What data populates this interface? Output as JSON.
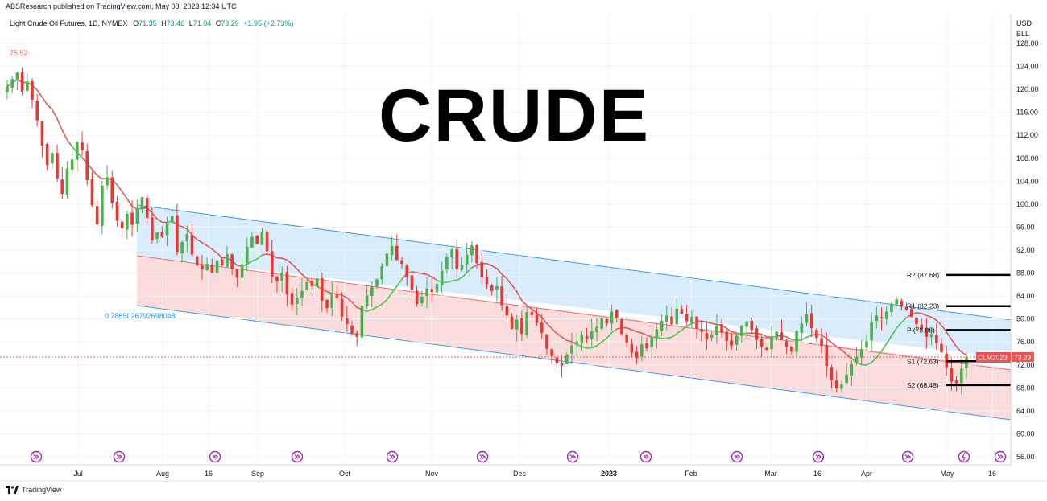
{
  "publisher_line": "ABSResearch published on TradingView.com, May 08, 2023 12:34 UTC",
  "symbol_line": {
    "name": "Light Crude Oil Futures, 1D, NYMEX",
    "o_label": "O",
    "o": "71.35",
    "h_label": "H",
    "h": "73.46",
    "l_label": "L",
    "l": "71.04",
    "c_label": "C",
    "c": "73.29",
    "change": "+1.95 (+2.73%)"
  },
  "currency": "USD",
  "unit": "BLL",
  "watermark": "CRUDE",
  "high_marker": "75.52",
  "fib_label": "0.7865026792698048",
  "price_tag": {
    "symbol": "CLM2023",
    "value": "73.29"
  },
  "branding": "TradingView",
  "colors": {
    "up": "#26a69a",
    "down": "#ef5350",
    "down_candle": "#e53935",
    "up_candle": "#4caf50",
    "channel_upper_fill": "#d8ecfc",
    "channel_lower_fill": "#fbdadb",
    "channel_line": "#2196f3",
    "ma_red": "#e05a5a",
    "ma_green": "#4cd35a",
    "pivot": "#000000",
    "accent": "#9c27b0"
  },
  "chart_data": {
    "type": "candlestick",
    "y_axis": {
      "min": 56,
      "max": 128,
      "ticks": [
        "128.00",
        "124.00",
        "120.00",
        "116.00",
        "112.00",
        "108.00",
        "104.00",
        "100.00",
        "96.00",
        "92.00",
        "88.00",
        "84.00",
        "80.00",
        "76.00",
        "72.00",
        "68.00",
        "64.00",
        "60.00",
        "56.00"
      ]
    },
    "x_axis": {
      "ticks": [
        "Jul",
        "Aug",
        "16",
        "Sep",
        "Oct",
        "Nov",
        "Dec",
        "2023",
        "Feb",
        "Mar",
        "16",
        "Apr",
        "May",
        "16"
      ]
    },
    "close_series": [
      120.5,
      121.8,
      122.9,
      119.6,
      121.4,
      118.2,
      114.6,
      110.2,
      106.8,
      108.9,
      104.5,
      101.8,
      106.2,
      107.8,
      110.9,
      109.4,
      104.2,
      99.8,
      96.5,
      103.2,
      104.7,
      100.2,
      97.1,
      95.8,
      98.3,
      96.4,
      99.1,
      101.2,
      97.6,
      93.7,
      95.1,
      94.3,
      96.8,
      97.9,
      91.7,
      93.4,
      94.8,
      91.2,
      89.3,
      88.7,
      89.6,
      88.1,
      90.2,
      89.4,
      91.3,
      88.7,
      87.2,
      89.5,
      92.6,
      94.3,
      93.1,
      95.2,
      91.8,
      87.4,
      86.6,
      88.1,
      84.3,
      82.5,
      83.7,
      84.9,
      86.4,
      85.7,
      87.1,
      83.2,
      81.9,
      84.5,
      83.7,
      80.4,
      79.1,
      77.5,
      76.9,
      82.3,
      84.1,
      85.6,
      86.9,
      89.2,
      91.4,
      92.7,
      90.3,
      89.6,
      87.4,
      85.1,
      82.6,
      83.9,
      85.3,
      84.7,
      86.1,
      88.4,
      90.8,
      92.1,
      88.7,
      89.4,
      91.2,
      92.8,
      89.7,
      87.3,
      86.1,
      84.9,
      85.7,
      82.4,
      80.6,
      78.3,
      79.9,
      77.4,
      81.2,
      80.7,
      79.3,
      77.6,
      74.8,
      73.5,
      72.3,
      71.9,
      73.8,
      75.4,
      76.1,
      77.3,
      76.6,
      77.9,
      78.6,
      80.1,
      79.2,
      81.3,
      80.2,
      77.4,
      75.9,
      74.1,
      73.2,
      75.6,
      74.9,
      76.8,
      78.2,
      79.7,
      80.6,
      79.1,
      81.8,
      80.9,
      79.6,
      80.4,
      78.3,
      77.8,
      76.5,
      77.3,
      78.9,
      77.6,
      76.2,
      75.4,
      77.1,
      78.8,
      79.6,
      78.1,
      76.4,
      75.2,
      74.6,
      76.9,
      77.8,
      76.4,
      75.1,
      74.3,
      77.9,
      79.2,
      80.8,
      78.4,
      76.7,
      75.3,
      71.8,
      69.4,
      67.9,
      68.6,
      70.3,
      72.1,
      73.4,
      74.8,
      76.1,
      79.5,
      80.6,
      80.2,
      81.3,
      82.7,
      83.4,
      82.1,
      81.6,
      80.4,
      79.1,
      78.3,
      76.9,
      77.4,
      75.8,
      74.2,
      71.6,
      69.1,
      68.8,
      71.35,
      73.29
    ],
    "pivots": [
      {
        "label": "R2 (87.68)",
        "value": 87.68
      },
      {
        "label": "R1 (82.23)",
        "value": 82.23
      },
      {
        "label": "P (78.08)",
        "value": 78.08
      },
      {
        "label": "S1 (72.63)",
        "value": 72.63
      },
      {
        "label": "S2 (68.48)",
        "value": 68.48
      }
    ],
    "last_price": 73.29
  }
}
